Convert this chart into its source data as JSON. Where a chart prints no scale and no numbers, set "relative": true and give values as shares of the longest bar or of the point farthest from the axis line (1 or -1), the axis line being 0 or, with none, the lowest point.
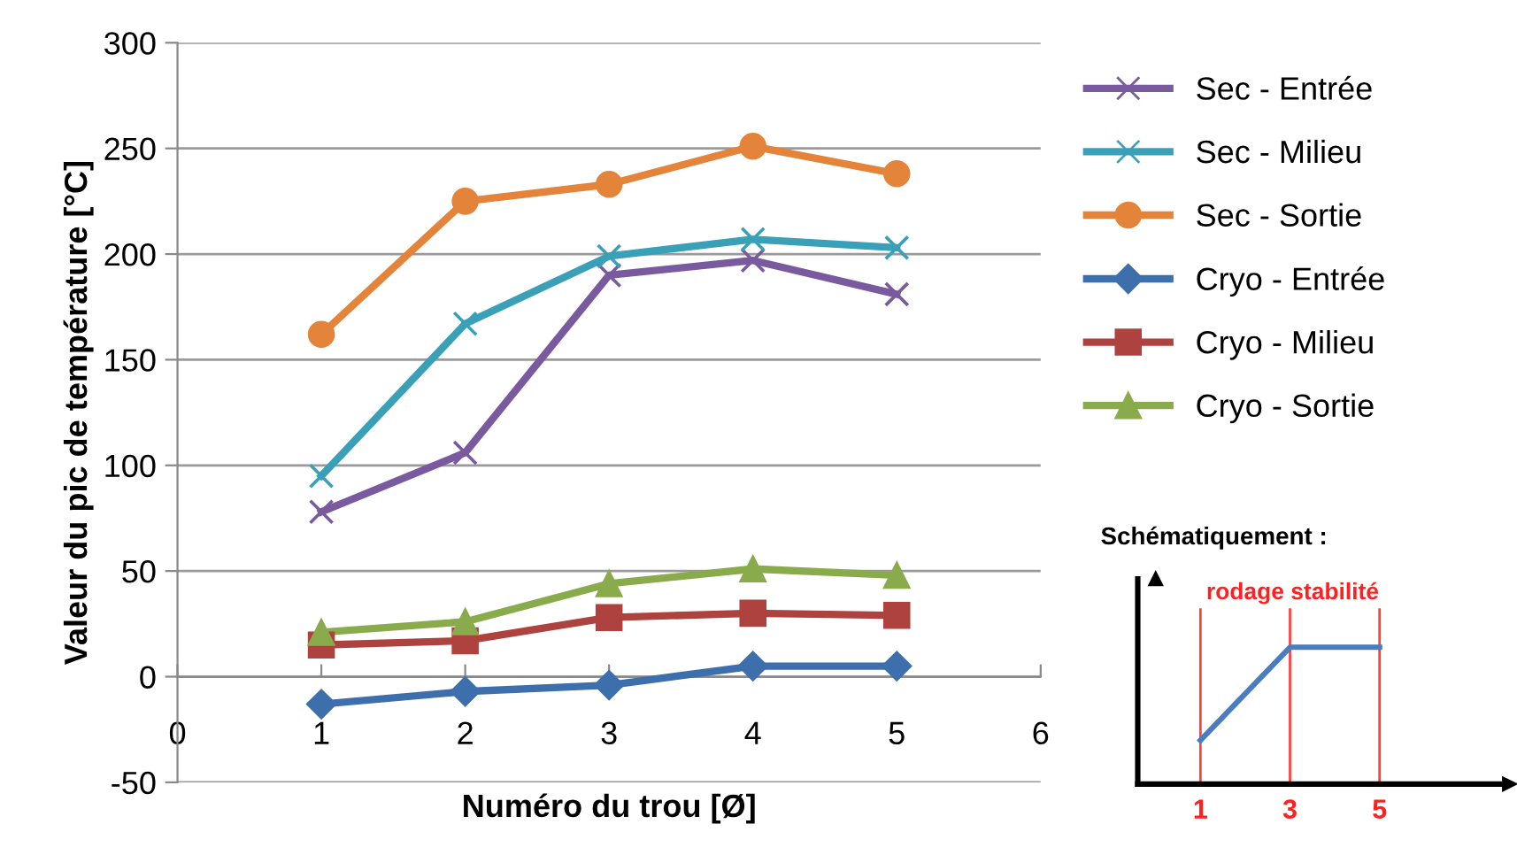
{
  "chart_data": [
    {
      "type": "line",
      "xlabel": "Numéro du trou [Ø]",
      "ylabel": "Valeur du pic de température [°C]",
      "x": [
        1,
        2,
        3,
        4,
        5
      ],
      "xlim": [
        0,
        6
      ],
      "xticks": [
        0,
        1,
        2,
        3,
        4,
        5,
        6
      ],
      "ylim": [
        -50,
        300
      ],
      "yticks": [
        -50,
        0,
        50,
        100,
        150,
        200,
        250,
        300
      ],
      "grid": "y",
      "legend": "right",
      "series": [
        {
          "name": "Sec - Entrée",
          "color": "#7a5a9e",
          "marker": "cross",
          "values": [
            78,
            106,
            190,
            197,
            181
          ]
        },
        {
          "name": "Sec - Milieu",
          "color": "#3aa0b8",
          "marker": "cross",
          "values": [
            95,
            167,
            199,
            207,
            203
          ]
        },
        {
          "name": "Sec - Sortie",
          "color": "#e3843a",
          "marker": "circle",
          "values": [
            162,
            225,
            233,
            251,
            238
          ]
        },
        {
          "name": "Cryo - Entrée",
          "color": "#3e6fad",
          "marker": "diamond",
          "values": [
            -13,
            -7,
            -4,
            5,
            5
          ]
        },
        {
          "name": "Cryo - Milieu",
          "color": "#ad423e",
          "marker": "square",
          "values": [
            15,
            17,
            28,
            30,
            29
          ]
        },
        {
          "name": "Cryo - Sortie",
          "color": "#8aab4c",
          "marker": "triangle",
          "values": [
            21,
            26,
            44,
            51,
            48
          ]
        }
      ]
    },
    {
      "type": "line",
      "title": "Schématiquement :",
      "relative": true,
      "x": [
        1,
        3,
        5
      ],
      "xlim": [
        -0.4,
        7.9
      ],
      "xticks": [
        1,
        3,
        5
      ],
      "series": [
        {
          "color": "#4a7cc0",
          "values": [
            0.32,
            1,
            1
          ]
        }
      ],
      "ref_lines": [
        {
          "axis": "x",
          "value": 1,
          "color": "#ff4040"
        },
        {
          "axis": "x",
          "value": 3,
          "color": "#ff4040"
        },
        {
          "axis": "x",
          "value": 5,
          "color": "#ff4040"
        }
      ],
      "annotations": [
        "rodage",
        "stabilité"
      ]
    }
  ]
}
